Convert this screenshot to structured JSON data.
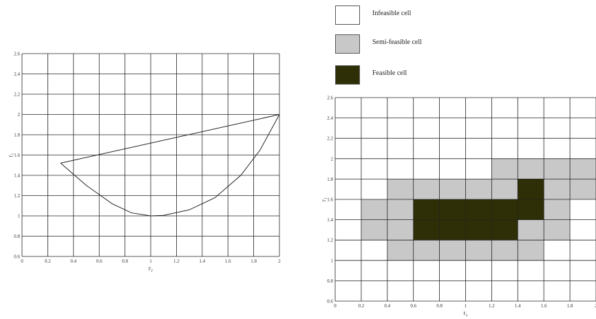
{
  "legend": [
    {
      "label": "Infeasible cell",
      "color": "#ffffff"
    },
    {
      "label": "Semi-feasible cell",
      "color": "#c8c8c8"
    },
    {
      "label": "Feasible cell",
      "color": "#2e2f06"
    }
  ],
  "left_plot": {
    "xlabel": "r₂",
    "ylabel": "r₁",
    "x_ticks": [
      "0",
      "0.2",
      "0.4",
      "0.6",
      "0.8",
      "1",
      "1.2",
      "1.4",
      "1.6",
      "1.8",
      "2"
    ],
    "y_ticks": [
      "0.6",
      "0.8",
      "1",
      "1.2",
      "1.4",
      "1.6",
      "1.8",
      "2",
      "2.2",
      "2.4",
      "2.6"
    ],
    "xlim": [
      0,
      2
    ],
    "ylim": [
      0.6,
      2.6
    ],
    "line_top": [
      [
        0.3,
        1.52
      ],
      [
        2.0,
        2.0
      ]
    ],
    "curve": [
      [
        0.3,
        1.52
      ],
      [
        0.5,
        1.3
      ],
      [
        0.7,
        1.12
      ],
      [
        0.85,
        1.03
      ],
      [
        1.0,
        1.0
      ],
      [
        1.1,
        1.005
      ],
      [
        1.3,
        1.06
      ],
      [
        1.5,
        1.18
      ],
      [
        1.7,
        1.4
      ],
      [
        1.85,
        1.65
      ],
      [
        2.0,
        2.0
      ]
    ]
  },
  "right_plot": {
    "xlabel": "r₂",
    "ylabel": "r₁",
    "x_ticks": [
      "0",
      "0.2",
      "0.4",
      "0.6",
      "0.8",
      "1",
      "1.2",
      "1.4",
      "1.6",
      "1.8",
      "2"
    ],
    "y_ticks": [
      "0.6",
      "0.8",
      "1",
      "1.2",
      "1.4",
      "1.6",
      "1.8",
      "2",
      "2.2",
      "2.4",
      "2.6"
    ],
    "semi_feasible_cells": [
      [
        0.2,
        1.2
      ],
      [
        0.2,
        1.4
      ],
      [
        0.4,
        1.0
      ],
      [
        0.4,
        1.2
      ],
      [
        0.4,
        1.4
      ],
      [
        0.4,
        1.6
      ],
      [
        0.6,
        1.0
      ],
      [
        0.6,
        1.6
      ],
      [
        0.8,
        1.0
      ],
      [
        0.8,
        1.6
      ],
      [
        1.0,
        1.0
      ],
      [
        1.0,
        1.6
      ],
      [
        1.2,
        1.0
      ],
      [
        1.2,
        1.6
      ],
      [
        1.2,
        1.8
      ],
      [
        1.4,
        1.0
      ],
      [
        1.4,
        1.2
      ],
      [
        1.4,
        1.8
      ],
      [
        1.6,
        1.2
      ],
      [
        1.6,
        1.4
      ],
      [
        1.6,
        1.6
      ],
      [
        1.6,
        1.8
      ],
      [
        1.8,
        1.6
      ],
      [
        1.8,
        1.8
      ]
    ],
    "feasible_cells": [
      [
        0.6,
        1.2
      ],
      [
        0.6,
        1.4
      ],
      [
        0.8,
        1.2
      ],
      [
        0.8,
        1.4
      ],
      [
        1.0,
        1.2
      ],
      [
        1.0,
        1.4
      ],
      [
        1.2,
        1.2
      ],
      [
        1.2,
        1.4
      ],
      [
        1.4,
        1.4
      ],
      [
        1.4,
        1.6
      ]
    ]
  }
}
